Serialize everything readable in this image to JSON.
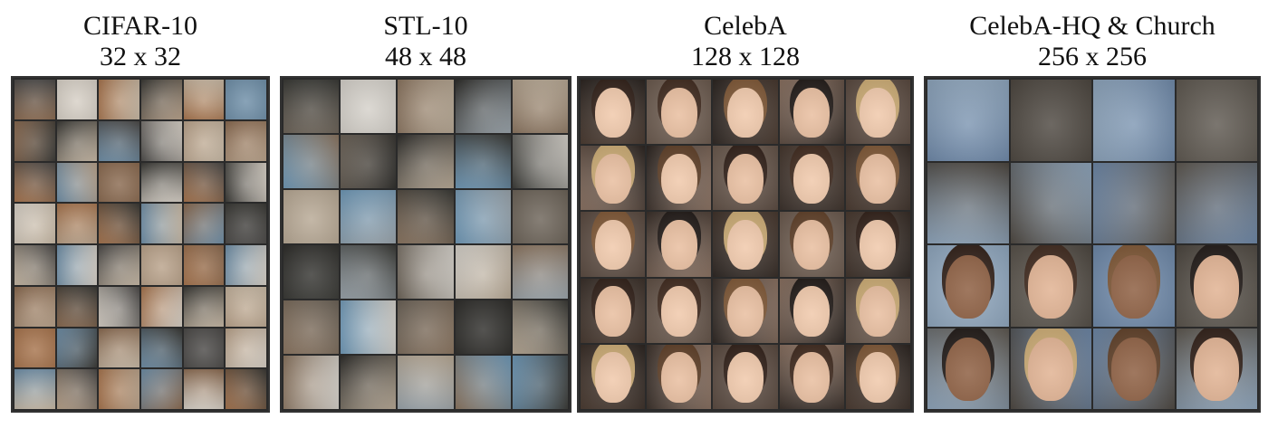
{
  "panels": [
    {
      "name": "CIFAR-10",
      "resolution": "32 x 32",
      "rows": 8,
      "cols": 6,
      "tint": [
        "#8a6a50",
        "#b9a28a",
        "#4c4a48",
        "#6f8fa8",
        "#c8b9a5",
        "#3b3a36",
        "#a7744d",
        "#d7d0c6"
      ],
      "faces": false
    },
    {
      "name": "STL-10",
      "resolution": "48 x 48",
      "rows": 6,
      "cols": 5,
      "tint": [
        "#6c6358",
        "#9aa4ab",
        "#3a3a36",
        "#6f99b8",
        "#b7a894",
        "#2f2e2b",
        "#8b7560",
        "#d5d1ca"
      ],
      "faces": false
    },
    {
      "name": "CelebA",
      "resolution": "128 x 128",
      "rows": 5,
      "cols": 5,
      "tint": [
        "#4a3a30",
        "#6b5a4e",
        "#2d2622",
        "#8b7262",
        "#5a4a40",
        "#3a302a"
      ],
      "faces": true
    },
    {
      "name": "CelebA-HQ & Church",
      "resolution": "256 x 256",
      "rows": 4,
      "cols": 4,
      "tint": [
        "#6e88a8",
        "#5e5850",
        "#8fa6bd",
        "#4d4740"
      ],
      "faces": "mixed"
    }
  ]
}
